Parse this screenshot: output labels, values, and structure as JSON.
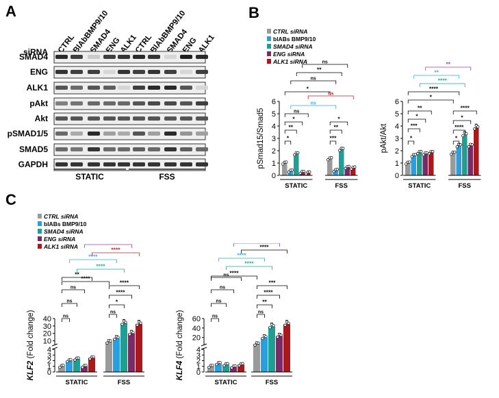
{
  "panels": {
    "a": "A",
    "b": "B",
    "c": "C"
  },
  "colors": {
    "ctrl": "#9a9a9a",
    "blab": "#2a9fe0",
    "smad4": "#1f9e94",
    "eng": "#7a2a66",
    "alk1": "#a8191d",
    "sig_blue": "#3aa9d8",
    "sig_teal": "#23a89a",
    "sig_red": "#b3222c",
    "sig_purple": "#a63c9c"
  },
  "western_blot": {
    "lane_label_header": "siRNA",
    "lanes": [
      "CTRL",
      "BlAbBMP9/10",
      "SMAD4",
      "ENG",
      "ALK1",
      "CTRL",
      "BlAbBMP9/10",
      "SMAD4",
      "ENG",
      "ALK1"
    ],
    "rows": [
      "SMAD4",
      "ENG",
      "ALK1",
      "pAkt",
      "Akt",
      "pSMAD1/5",
      "SMAD5",
      "GAPDH"
    ],
    "conditions": [
      "STATIC",
      "FSS"
    ]
  },
  "chart_data": [
    {
      "id": "legend_b",
      "type": "legend",
      "entries": [
        "CTRL siRNA",
        "blABs BMP9/10",
        "SMAD4 siRNA",
        "ENG siRNA",
        "ALK1 siRNA"
      ]
    },
    {
      "id": "psmad",
      "type": "bar",
      "ylabel": "pSmad15/Smad5",
      "ylim": [
        0,
        6
      ],
      "yticks": [
        "0",
        "1",
        "2",
        "3",
        "4",
        "5",
        "6"
      ],
      "groups": [
        "STATIC",
        "FSS"
      ],
      "series": [
        {
          "name": "CTRL siRNA",
          "values": [
            1.0,
            1.35
          ]
        },
        {
          "name": "blABs BMP9/10",
          "values": [
            0.35,
            0.4
          ]
        },
        {
          "name": "SMAD4 siRNA",
          "values": [
            1.75,
            2.1
          ]
        },
        {
          "name": "ENG siRNA",
          "values": [
            0.25,
            0.65
          ]
        },
        {
          "name": "ALK1 siRNA",
          "values": [
            0.2,
            0.6
          ]
        }
      ],
      "significance": [
        "*",
        "**",
        "*",
        "ns",
        "***",
        "**",
        "*",
        "*",
        "ns",
        "**",
        "ns",
        "*",
        "ns",
        "ns"
      ]
    },
    {
      "id": "pakt",
      "type": "bar",
      "ylabel": "pAkt/Akt",
      "ylim": [
        0,
        6
      ],
      "yticks": [
        "0",
        "1",
        "2",
        "3",
        "4",
        "5",
        "6"
      ],
      "groups": [
        "STATIC",
        "FSS"
      ],
      "series": [
        {
          "name": "CTRL siRNA",
          "values": [
            1.0,
            1.8
          ]
        },
        {
          "name": "blABs BMP9/10",
          "values": [
            1.6,
            2.4
          ]
        },
        {
          "name": "SMAD4 siRNA",
          "values": [
            1.85,
            3.3
          ]
        },
        {
          "name": "ENG siRNA",
          "values": [
            1.75,
            2.4
          ]
        },
        {
          "name": "ALK1 siRNA",
          "values": [
            1.85,
            3.85
          ]
        }
      ],
      "significance": [
        "*",
        "***",
        "*",
        "**",
        "*",
        "****",
        "*",
        "****",
        "*",
        "****",
        "****",
        "**",
        "**"
      ]
    },
    {
      "id": "legend_c",
      "type": "legend",
      "entries": [
        "CTRL siRNA",
        "blABs BMP9/10",
        "SMAD4 siRNA",
        "ENG siRNA",
        "ALK1 siRNA"
      ]
    },
    {
      "id": "klf2",
      "type": "bar",
      "ylabel_gene": "KLF2",
      "ylabel_rest": "(Fold change)",
      "broken_axis": true,
      "yticks_low": [
        "0",
        "1",
        "2",
        "3",
        "4"
      ],
      "yticks_high": [
        "10",
        "20",
        "30",
        "40"
      ],
      "groups": [
        "STATIC",
        "FSS"
      ],
      "series": [
        {
          "name": "CTRL siRNA",
          "values": [
            1.0,
            8.5
          ]
        },
        {
          "name": "blABs BMP9/10",
          "values": [
            2.0,
            13.5
          ]
        },
        {
          "name": "SMAD4 siRNA",
          "values": [
            2.3,
            33.5
          ]
        },
        {
          "name": "ENG siRNA",
          "values": [
            1.0,
            20.0
          ]
        },
        {
          "name": "ALK1 siRNA",
          "values": [
            2.5,
            32.5
          ]
        }
      ],
      "significance": [
        "ns",
        "ns",
        "ns",
        "**",
        "ns",
        "*",
        "****",
        "****",
        "****",
        "****",
        "****",
        "****",
        "****"
      ]
    },
    {
      "id": "klf4",
      "type": "bar",
      "ylabel_gene": "KLF4",
      "ylabel_rest": "(Fold change)",
      "broken_axis": true,
      "yticks_low": [
        "0",
        "1",
        "2",
        "3",
        "4"
      ],
      "yticks_high": [
        "20",
        "40",
        "60"
      ],
      "groups": [
        "STATIC",
        "FSS"
      ],
      "series": [
        {
          "name": "CTRL siRNA",
          "values": [
            1.0,
            6.0
          ]
        },
        {
          "name": "blABs BMP9/10",
          "values": [
            1.5,
            20.0
          ]
        },
        {
          "name": "SMAD4 siRNA",
          "values": [
            1.3,
            43.0
          ]
        },
        {
          "name": "ENG siRNA",
          "values": [
            0.9,
            23.0
          ]
        },
        {
          "name": "ALK1 siRNA",
          "values": [
            1.3,
            48.0
          ]
        }
      ],
      "significance": [
        "ns",
        "ns",
        "ns",
        "ns",
        "ns",
        "**",
        "****",
        "***",
        "****",
        "****",
        "****",
        "****",
        "****"
      ]
    }
  ]
}
